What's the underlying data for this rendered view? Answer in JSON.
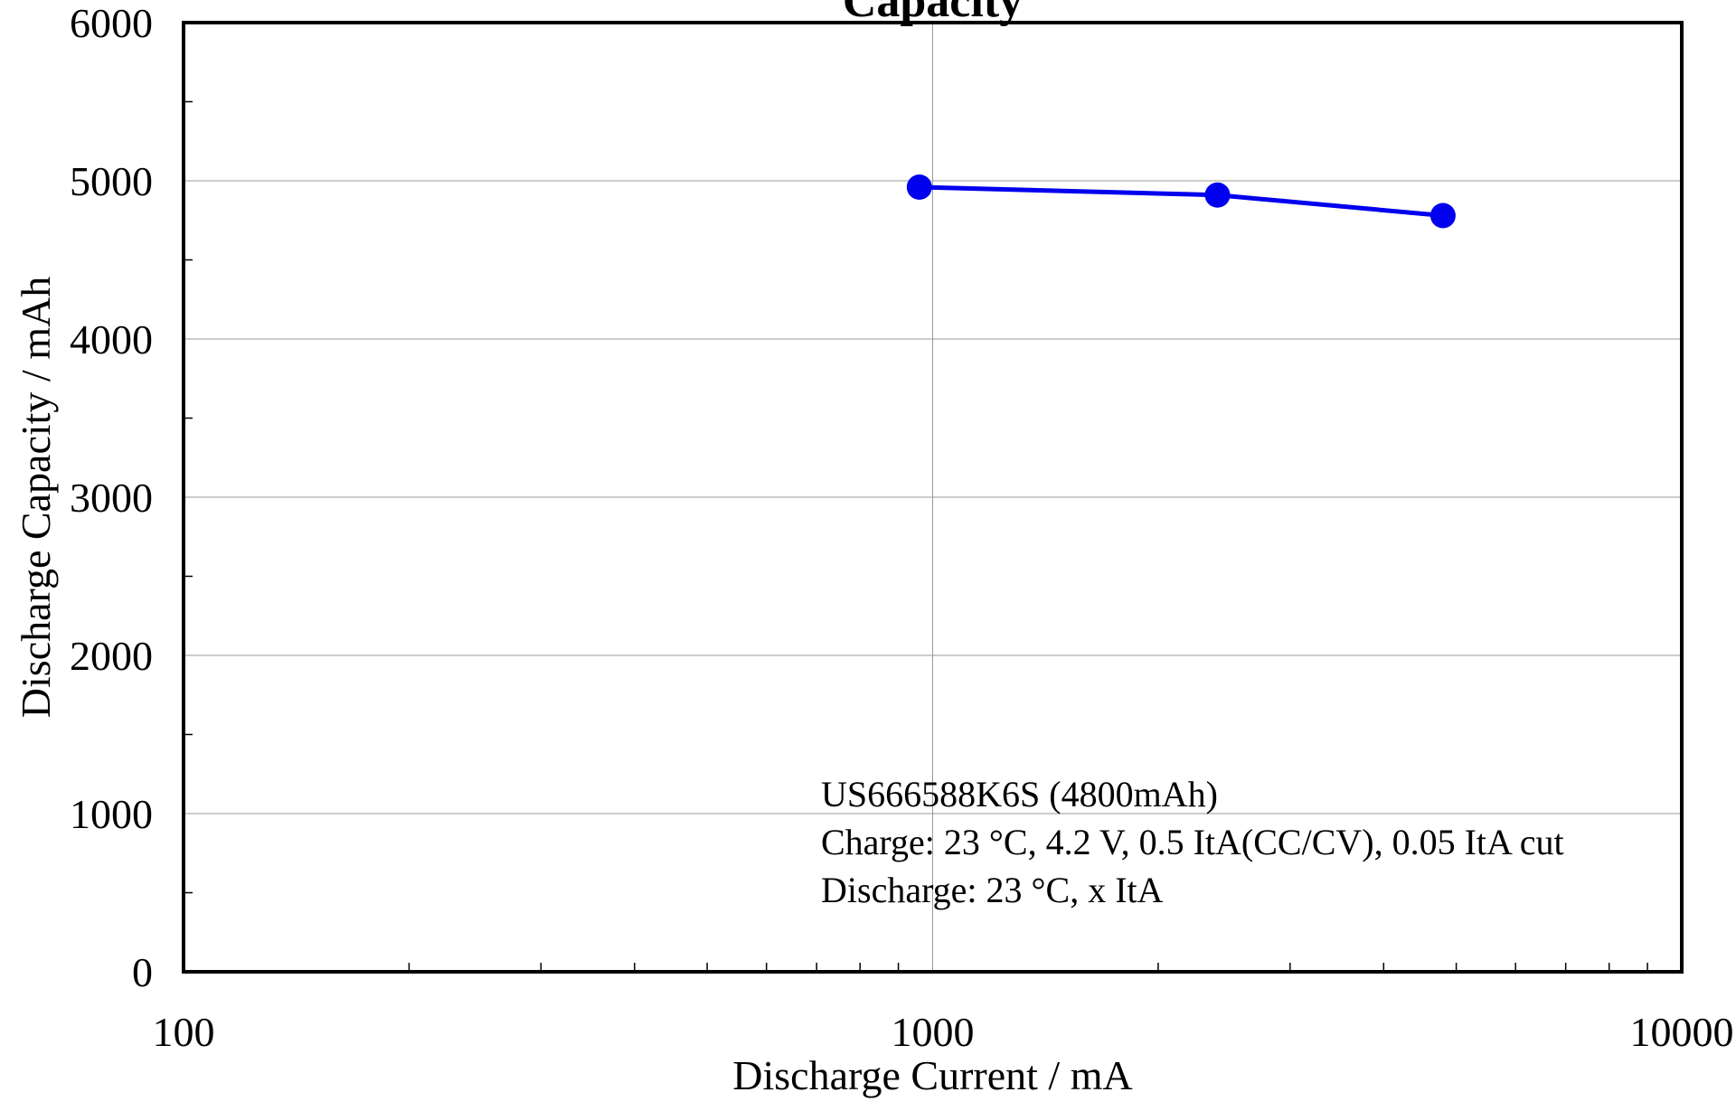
{
  "chart_data": {
    "type": "line",
    "title": "Capacity",
    "xlabel": "Discharge Current / mA",
    "ylabel": "Discharge Capacity / mAh",
    "x_scale": "log",
    "xlim": [
      100,
      10000
    ],
    "ylim": [
      0,
      6000
    ],
    "x_ticks": [
      100,
      1000,
      10000
    ],
    "x_tick_labels": [
      "100",
      "1000",
      "10000"
    ],
    "y_ticks": [
      0,
      1000,
      2000,
      3000,
      4000,
      5000,
      6000
    ],
    "y_tick_labels": [
      "0",
      "1000",
      "2000",
      "3000",
      "4000",
      "5000",
      "6000"
    ],
    "grid": true,
    "series": [
      {
        "x": [
          960,
          2400,
          4800
        ],
        "y": [
          4960,
          4910,
          4780
        ],
        "color": "#0000ee"
      }
    ],
    "annotations": [
      "US666588K6S (4800mAh)",
      "Charge: 23 °C, 4.2 V, 0.5 ItA(CC/CV), 0.05 ItA cut",
      "Discharge: 23 °C, x ItA"
    ]
  }
}
